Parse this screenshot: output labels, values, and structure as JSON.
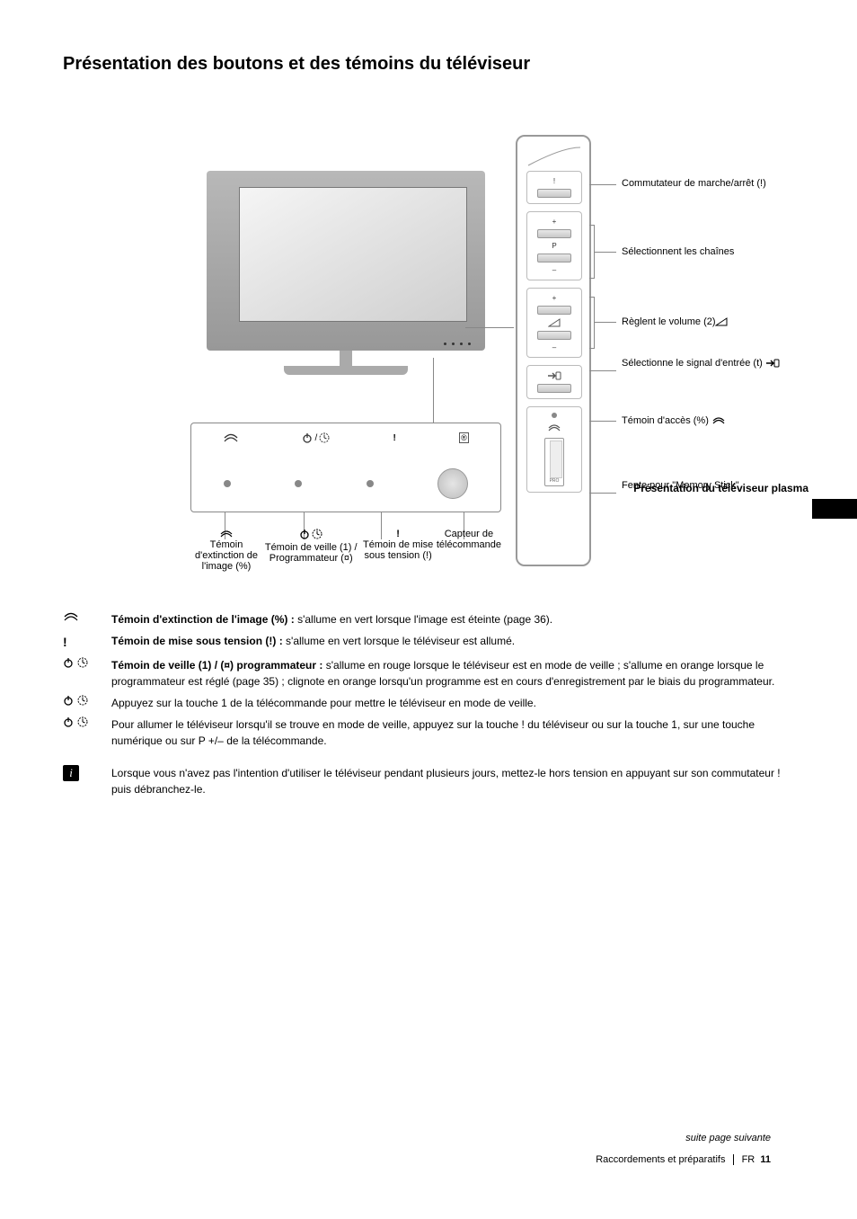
{
  "title": "Présentation des boutons et des témoins du téléviseur",
  "side_tab_text": "Présentation du téléviseur plasma",
  "diagram": {
    "side_panel": {
      "onoff": {
        "label_right": "Commutateur de marche/arrêt (!)",
        "btn_symbol": "!"
      },
      "prog": {
        "plus": "+",
        "letter": "P",
        "minus": "–",
        "label_right": "Sélectionnent les chaînes"
      },
      "vol": {
        "plus": "+",
        "minus": "–",
        "label_right": "Règlent le volume (2)"
      },
      "source": {
        "label_right": "Sélectionne le signal d'entrée (t)"
      },
      "ms": {
        "led_label": "",
        "slot_label": "PRO",
        "label_right_1": "Témoin d'accès (%)",
        "label_right_2": "Fente pour \"Memory Stick\""
      }
    },
    "indicator": {
      "top_icons": {
        "pictoff": "%",
        "standby_timer": "1/¤",
        "power_mark": "!",
        "ir": "®"
      },
      "bottom_labels": {
        "pictoff": "Témoin d'extinction de l'image (%)",
        "standby_timer": "Témoin de veille (1) / Programmateur (¤)",
        "power": "Témoin de mise sous tension (!)",
        "ir": "Capteur de télécommande"
      }
    }
  },
  "notes": [
    {
      "sym": "pictoff",
      "html": "<b>Témoin d'extinction de l'image (%) :</b> s'allume en vert lorsque l'image est éteinte (page 36)."
    },
    {
      "sym": "power-mark",
      "html": "<b>Témoin de mise sous tension (!) :</b> s'allume en vert lorsque le téléviseur est allumé."
    },
    {
      "sym": "standby-timer",
      "html": "<b>Témoin de veille (1) / (¤) programmateur :</b> s'allume en rouge lorsque le téléviseur est en mode de veille ; s'allume en orange lorsque le programmateur est réglé (page 35) ; clignote en orange lorsqu'un programme est en cours d'enregistrement par le biais du programmateur."
    },
    {
      "sym": "standby-timer",
      "html": "Appuyez sur la touche 1 de la télécommande pour mettre le téléviseur en mode de veille."
    },
    {
      "sym": "standby-timer",
      "html": "Pour allumer le téléviseur lorsqu'il se trouve en mode de veille, appuyez sur la touche ! du téléviseur ou sur la touche 1, sur une touche numérique ou sur P +/– de la télécommande."
    }
  ],
  "info": "Lorsque vous n'avez pas l'intention d'utiliser le téléviseur pendant plusieurs jours, mettez-le hors tension en appuyant sur son commutateur ! puis débranchez-le.",
  "continues": "suite page suivante",
  "footer": {
    "right1": "Raccordements et préparatifs",
    "right2": "FR",
    "page": "11"
  },
  "glyphs": {
    "pictoff_title": "picture-off",
    "power_title": "power",
    "timer_title": "timer",
    "tri_title": "volume",
    "input_title": "input"
  },
  "colors": {
    "line": "#888888",
    "tv_grad_top": "#b8b8b8",
    "tv_grad_bot": "#989898",
    "text": "#000000",
    "bg": "#ffffff"
  }
}
